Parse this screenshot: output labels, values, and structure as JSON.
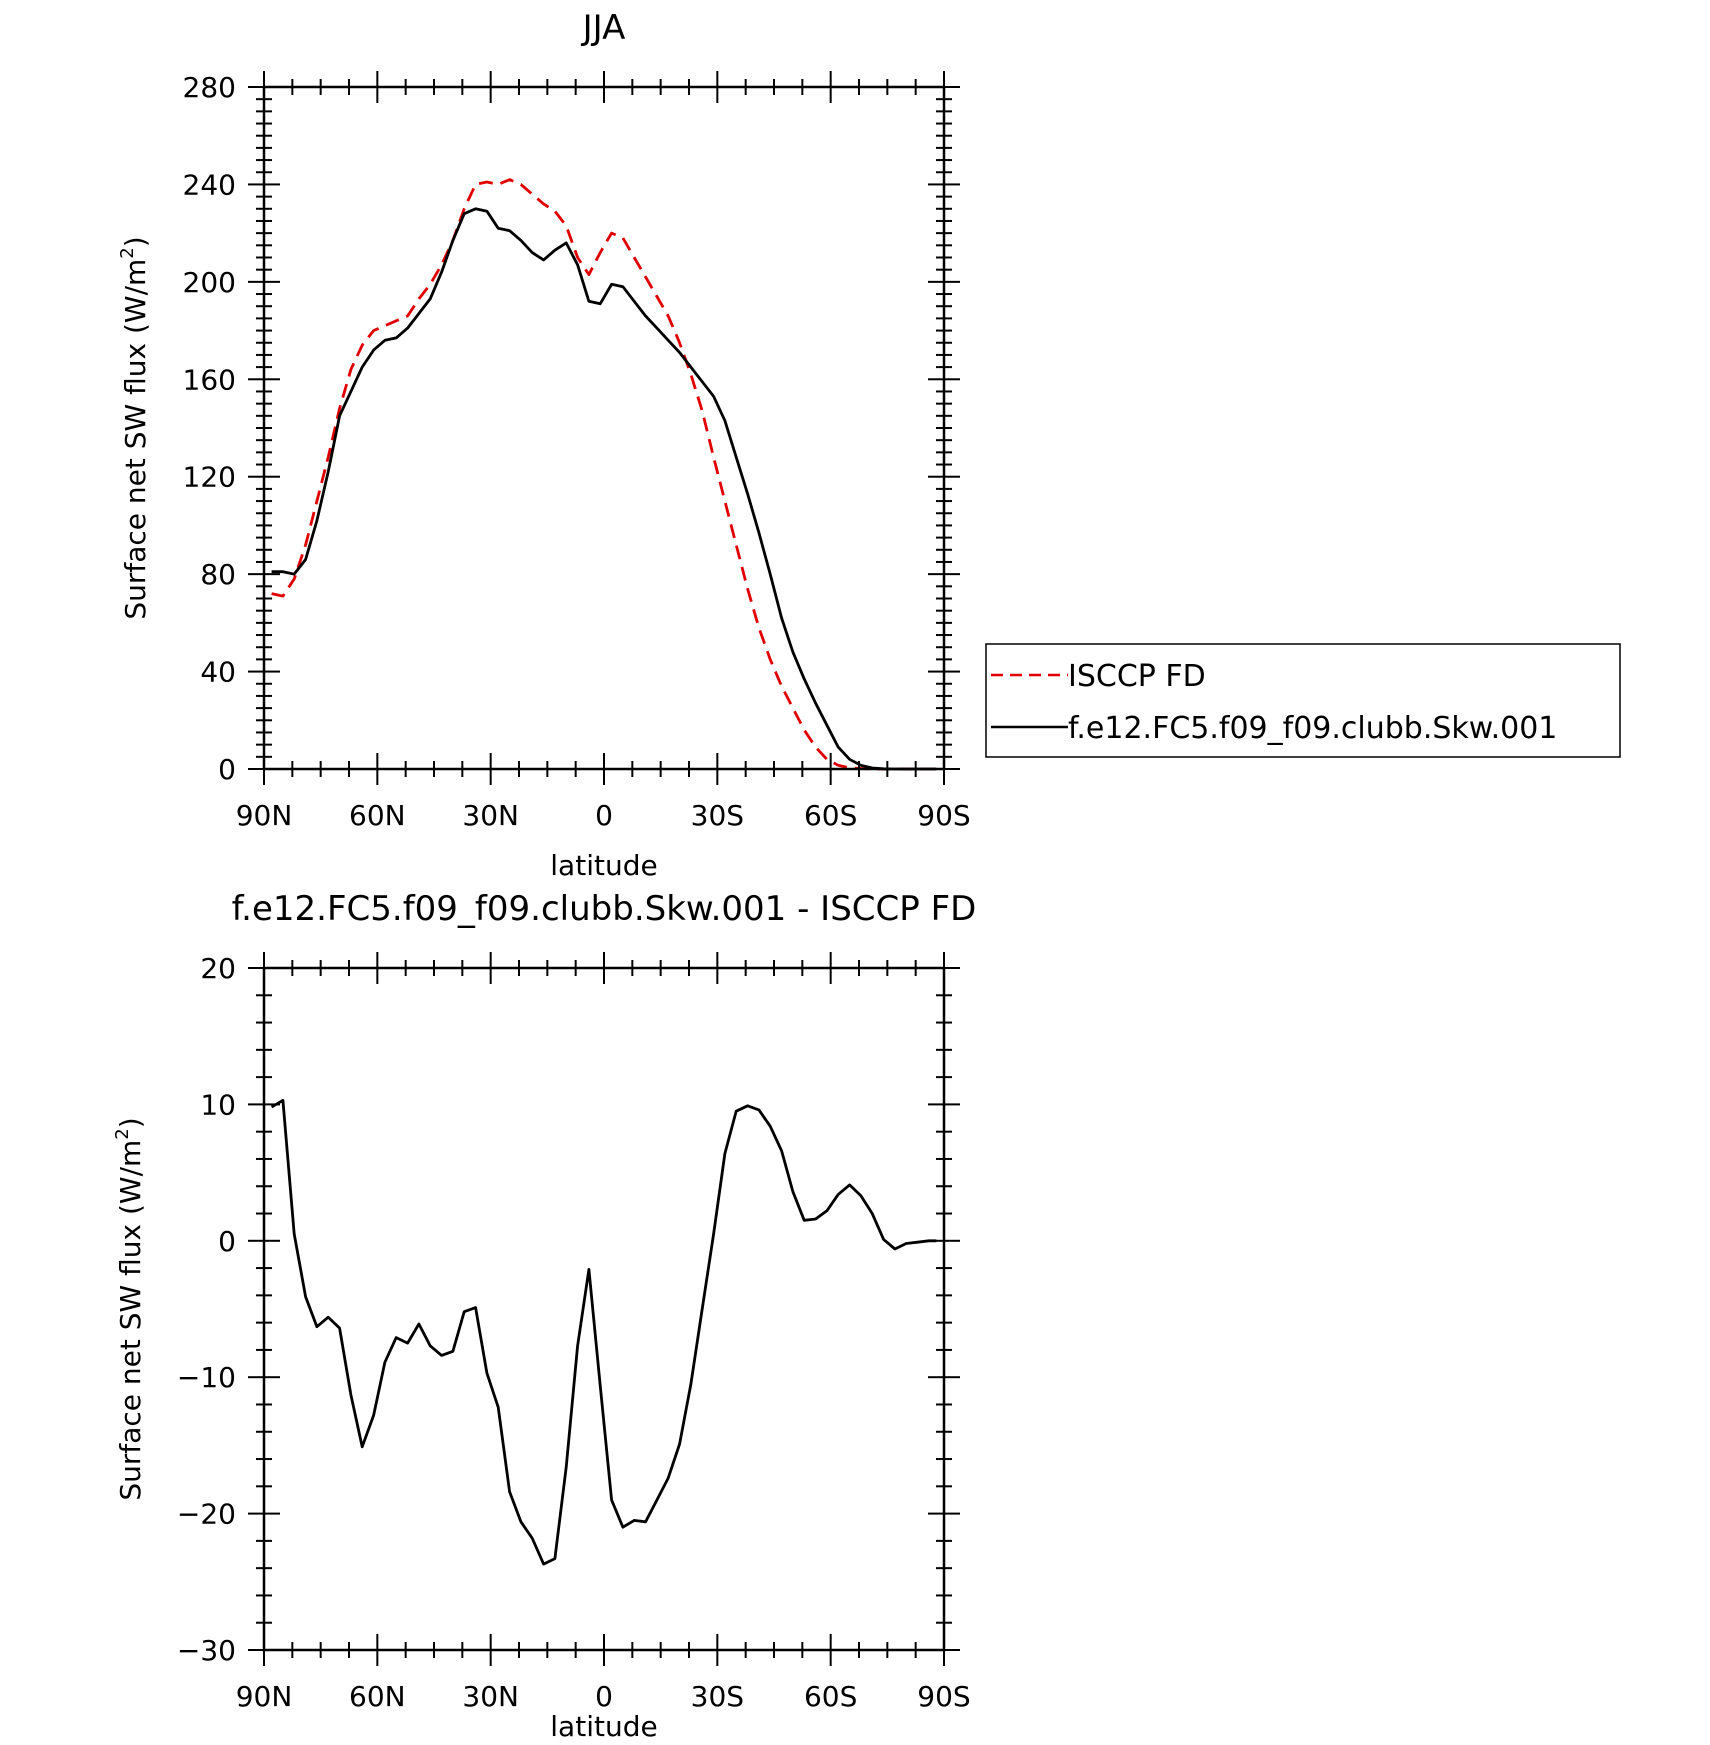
{
  "chart_data": [
    {
      "type": "line",
      "title": "JJA",
      "xlabel": "latitude",
      "ylabel": "Surface net SW flux (W/m2)",
      "ylabel_parts": {
        "main": "Surface net SW flux (W/m",
        "sup": "2",
        "close": ")"
      },
      "xlim": [
        90,
        -90
      ],
      "ylim": [
        0,
        280
      ],
      "x_ticks": [
        90,
        60,
        30,
        0,
        -30,
        -60,
        -90
      ],
      "x_tick_labels": [
        "90N",
        "60N",
        "30N",
        "0",
        "30S",
        "60S",
        "90S"
      ],
      "y_ticks": [
        0,
        40,
        80,
        120,
        160,
        200,
        240,
        280
      ],
      "y_tick_labels": [
        "0",
        "40",
        "80",
        "120",
        "160",
        "200",
        "240",
        "280"
      ],
      "grid": false,
      "legend_placement": "right, outside plot",
      "series": [
        {
          "name": "ISCCP FD",
          "color": "#e00000",
          "dash": "dashed",
          "x": [
            88,
            85,
            82,
            79,
            76,
            73,
            70,
            67,
            64,
            61,
            58,
            55,
            52,
            49,
            46,
            43,
            40,
            37,
            34,
            31,
            28,
            25,
            22,
            19,
            16,
            13,
            10,
            7,
            4,
            1,
            -2,
            -5,
            -8,
            -11,
            -14,
            -17,
            -20,
            -23,
            -26,
            -29,
            -32,
            -35,
            -38,
            -41,
            -44,
            -47,
            -50,
            -53,
            -56,
            -59,
            -62,
            -65,
            -68,
            -71,
            -74,
            -77,
            -80,
            -83,
            -86,
            -88
          ],
          "y": [
            72,
            71,
            78,
            92,
            110,
            128,
            148,
            164,
            174,
            180,
            182,
            184,
            186,
            193,
            199,
            207,
            217,
            230,
            240,
            241,
            240,
            242,
            240,
            236,
            232,
            229,
            223,
            210,
            203,
            212,
            220,
            218,
            210,
            202,
            194,
            186,
            175,
            162,
            147,
            128,
            110,
            92,
            74,
            58,
            45,
            34,
            25,
            16,
            9,
            4,
            1.5,
            0.5,
            0.2,
            0,
            0,
            0,
            0,
            0,
            0,
            0
          ]
        },
        {
          "name": "f.e12.FC5.f09_f09.clubb.Skw.001",
          "color": "#000000",
          "dash": "solid",
          "x": [
            88,
            85,
            82,
            79,
            76,
            73,
            70,
            67,
            64,
            61,
            58,
            55,
            52,
            49,
            46,
            43,
            40,
            37,
            34,
            31,
            28,
            25,
            22,
            19,
            16,
            13,
            10,
            7,
            4,
            1,
            -2,
            -5,
            -8,
            -11,
            -14,
            -17,
            -20,
            -23,
            -26,
            -29,
            -32,
            -35,
            -38,
            -41,
            -44,
            -47,
            -50,
            -53,
            -56,
            -59,
            -62,
            -65,
            -68,
            -71,
            -74,
            -77,
            -80,
            -83,
            -86,
            -88
          ],
          "y": [
            81,
            81,
            80,
            86,
            102,
            122,
            145,
            155,
            165,
            172,
            176,
            177,
            181,
            187,
            193,
            204,
            217,
            228,
            230,
            229,
            222,
            221,
            217,
            212,
            209,
            213,
            216,
            207,
            192,
            191,
            199,
            198,
            192,
            186,
            181,
            176,
            171,
            165,
            159,
            153,
            143,
            128,
            113,
            97,
            80,
            62,
            48,
            37,
            27,
            18,
            9,
            4,
            1.5,
            0.4,
            0.1,
            0,
            0,
            0,
            0,
            0
          ]
        }
      ]
    },
    {
      "type": "line",
      "title": "f.e12.FC5.f09_f09.clubb.Skw.001 - ISCCP FD",
      "xlabel": "latitude",
      "ylabel": "Surface net SW flux (W/m2)",
      "ylabel_parts": {
        "main": "Surface net SW flux (W/m",
        "sup": "2",
        "close": ")"
      },
      "xlim": [
        90,
        -90
      ],
      "ylim": [
        -30,
        20
      ],
      "x_ticks": [
        90,
        60,
        30,
        0,
        -30,
        -60,
        -90
      ],
      "x_tick_labels": [
        "90N",
        "60N",
        "30N",
        "0",
        "30S",
        "60S",
        "90S"
      ],
      "y_ticks": [
        -30,
        -20,
        -10,
        0,
        10,
        20
      ],
      "y_tick_labels": [
        "−30",
        "−20",
        "−10",
        "0",
        "10",
        "20"
      ],
      "grid": false,
      "series": [
        {
          "color": "#000000",
          "dash": "solid",
          "x": [
            88,
            85,
            82,
            79,
            76,
            73,
            70,
            67,
            64,
            61,
            58,
            55,
            52,
            49,
            46,
            43,
            40,
            37,
            34,
            31,
            28,
            25,
            22,
            19,
            16,
            13,
            10,
            7,
            4,
            1,
            -2,
            -5,
            -8,
            -11,
            -14,
            -17,
            -20,
            -23,
            -26,
            -29,
            -32,
            -35,
            -38,
            -41,
            -44,
            -47,
            -50,
            -53,
            -56,
            -59,
            -62,
            -65,
            -68,
            -71,
            -74,
            -77,
            -80,
            -83,
            -86,
            -88
          ],
          "y": [
            9.8,
            10.3,
            0.5,
            -4.1,
            -6.3,
            -5.6,
            -6.4,
            -11.3,
            -15.1,
            -12.8,
            -8.9,
            -7.1,
            -7.5,
            -6.1,
            -7.7,
            -8.4,
            -8.1,
            -5.2,
            -4.9,
            -9.7,
            -12.2,
            -18.4,
            -20.6,
            -21.8,
            -23.7,
            -23.3,
            -16.6,
            -7.7,
            -2.1,
            -10.6,
            -19.0,
            -21.0,
            -20.5,
            -20.6,
            -19.0,
            -17.4,
            -14.9,
            -10.5,
            -5.0,
            0.5,
            6.4,
            9.5,
            9.9,
            9.6,
            8.4,
            6.6,
            3.6,
            1.5,
            1.6,
            2.2,
            3.4,
            4.1,
            3.3,
            2.0,
            0.1,
            -0.6,
            -0.2,
            -0.1,
            0,
            0
          ]
        }
      ]
    }
  ]
}
